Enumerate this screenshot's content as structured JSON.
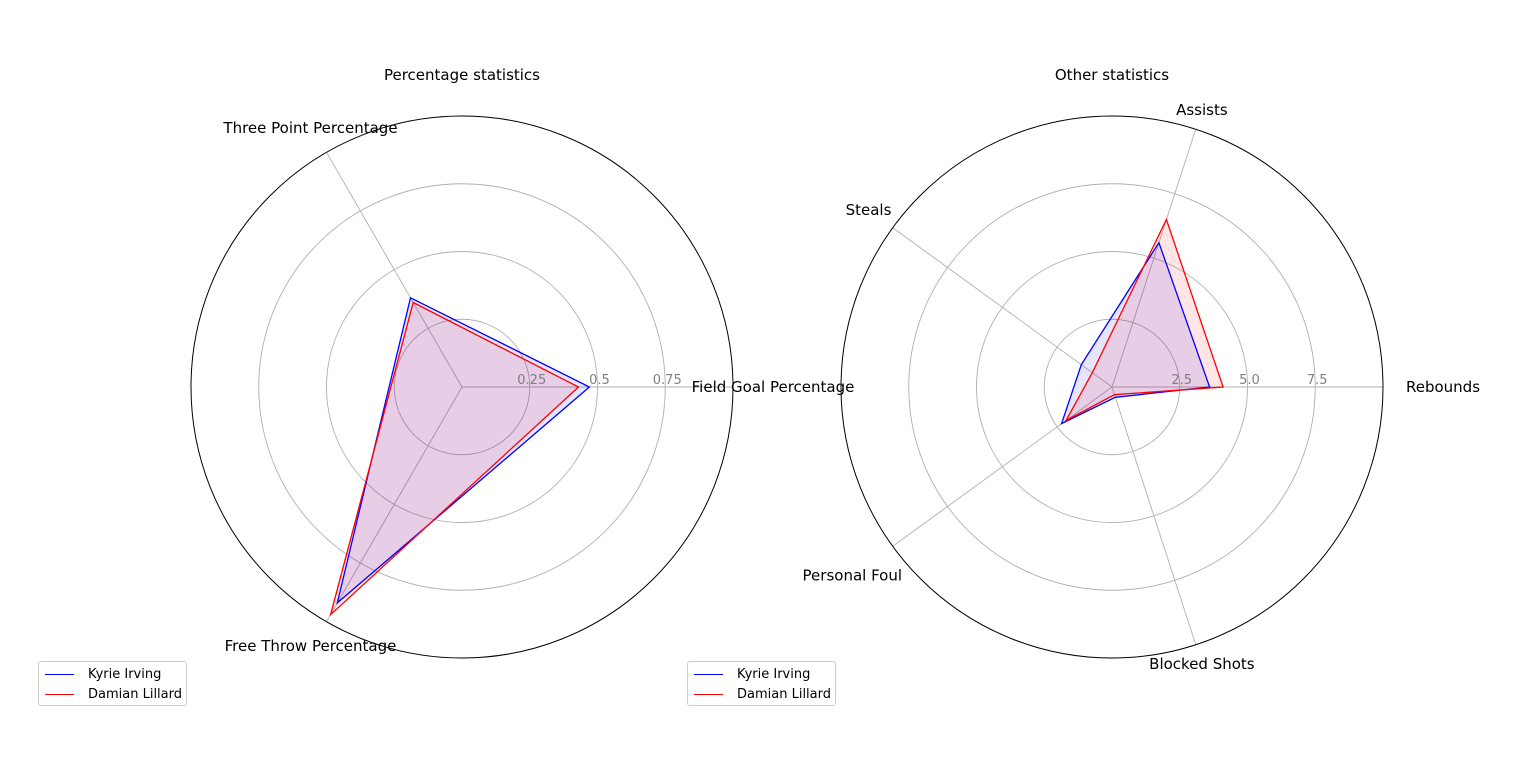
{
  "chart_data": [
    {
      "type": "radar",
      "title": "Percentage statistics",
      "categories": [
        "Field Goal Percentage",
        "Three Point Percentage",
        "Free Throw Percentage"
      ],
      "rlim": [
        0,
        1
      ],
      "rticks": [
        "0.25",
        "0.5",
        "0.75"
      ],
      "rtick_values": [
        0.25,
        0.5,
        0.75
      ],
      "series": [
        {
          "name": "Kyrie Irving",
          "color": "#0000ff",
          "values": [
            0.47,
            0.38,
            0.92
          ]
        },
        {
          "name": "Damian Lillard",
          "color": "#ff0000",
          "values": [
            0.43,
            0.36,
            0.97
          ]
        }
      ],
      "legend_placement": "bottom-left"
    },
    {
      "type": "radar",
      "title": "Other statistics",
      "categories": [
        "Rebounds",
        "Assists",
        "Steals",
        "Personal Foul",
        "Blocked Shots"
      ],
      "rlim": [
        0,
        10
      ],
      "rticks": [
        "2.5",
        "5.0",
        "7.5"
      ],
      "rtick_values": [
        2.5,
        5.0,
        7.5
      ],
      "series": [
        {
          "name": "Kyrie Irving",
          "color": "#0000ff",
          "values": [
            3.6,
            5.6,
            1.4,
            2.3,
            0.4
          ]
        },
        {
          "name": "Damian Lillard",
          "color": "#ff0000",
          "values": [
            4.1,
            6.5,
            0.9,
            2.1,
            0.3
          ]
        }
      ],
      "legend_placement": "bottom-left"
    }
  ]
}
